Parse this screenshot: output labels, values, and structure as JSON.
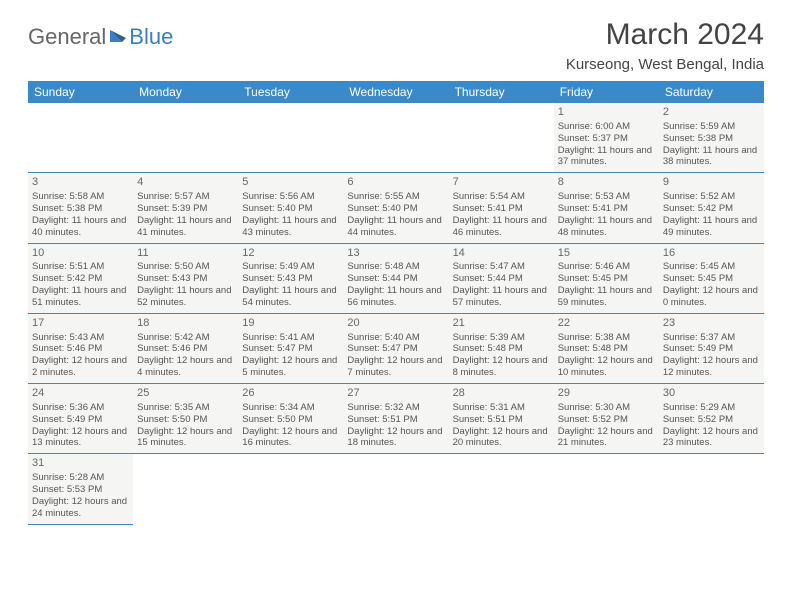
{
  "brand": {
    "part1": "General",
    "part2": "Blue"
  },
  "title": "March 2024",
  "location": "Kurseong, West Bengal, India",
  "colors": {
    "header_bg": "#3a89c9",
    "header_text": "#ffffff",
    "cell_bg": "#f5f5f3",
    "border": "#3a89c9",
    "text": "#555555",
    "brand_gray": "#666666",
    "brand_blue": "#3a7fc4"
  },
  "weekdays": [
    "Sunday",
    "Monday",
    "Tuesday",
    "Wednesday",
    "Thursday",
    "Friday",
    "Saturday"
  ],
  "first_weekday_index": 5,
  "days": [
    {
      "n": 1,
      "sunrise": "6:00 AM",
      "sunset": "5:37 PM",
      "daylight": "11 hours and 37 minutes."
    },
    {
      "n": 2,
      "sunrise": "5:59 AM",
      "sunset": "5:38 PM",
      "daylight": "11 hours and 38 minutes."
    },
    {
      "n": 3,
      "sunrise": "5:58 AM",
      "sunset": "5:38 PM",
      "daylight": "11 hours and 40 minutes."
    },
    {
      "n": 4,
      "sunrise": "5:57 AM",
      "sunset": "5:39 PM",
      "daylight": "11 hours and 41 minutes."
    },
    {
      "n": 5,
      "sunrise": "5:56 AM",
      "sunset": "5:40 PM",
      "daylight": "11 hours and 43 minutes."
    },
    {
      "n": 6,
      "sunrise": "5:55 AM",
      "sunset": "5:40 PM",
      "daylight": "11 hours and 44 minutes."
    },
    {
      "n": 7,
      "sunrise": "5:54 AM",
      "sunset": "5:41 PM",
      "daylight": "11 hours and 46 minutes."
    },
    {
      "n": 8,
      "sunrise": "5:53 AM",
      "sunset": "5:41 PM",
      "daylight": "11 hours and 48 minutes."
    },
    {
      "n": 9,
      "sunrise": "5:52 AM",
      "sunset": "5:42 PM",
      "daylight": "11 hours and 49 minutes."
    },
    {
      "n": 10,
      "sunrise": "5:51 AM",
      "sunset": "5:42 PM",
      "daylight": "11 hours and 51 minutes."
    },
    {
      "n": 11,
      "sunrise": "5:50 AM",
      "sunset": "5:43 PM",
      "daylight": "11 hours and 52 minutes."
    },
    {
      "n": 12,
      "sunrise": "5:49 AM",
      "sunset": "5:43 PM",
      "daylight": "11 hours and 54 minutes."
    },
    {
      "n": 13,
      "sunrise": "5:48 AM",
      "sunset": "5:44 PM",
      "daylight": "11 hours and 56 minutes."
    },
    {
      "n": 14,
      "sunrise": "5:47 AM",
      "sunset": "5:44 PM",
      "daylight": "11 hours and 57 minutes."
    },
    {
      "n": 15,
      "sunrise": "5:46 AM",
      "sunset": "5:45 PM",
      "daylight": "11 hours and 59 minutes."
    },
    {
      "n": 16,
      "sunrise": "5:45 AM",
      "sunset": "5:45 PM",
      "daylight": "12 hours and 0 minutes."
    },
    {
      "n": 17,
      "sunrise": "5:43 AM",
      "sunset": "5:46 PM",
      "daylight": "12 hours and 2 minutes."
    },
    {
      "n": 18,
      "sunrise": "5:42 AM",
      "sunset": "5:46 PM",
      "daylight": "12 hours and 4 minutes."
    },
    {
      "n": 19,
      "sunrise": "5:41 AM",
      "sunset": "5:47 PM",
      "daylight": "12 hours and 5 minutes."
    },
    {
      "n": 20,
      "sunrise": "5:40 AM",
      "sunset": "5:47 PM",
      "daylight": "12 hours and 7 minutes."
    },
    {
      "n": 21,
      "sunrise": "5:39 AM",
      "sunset": "5:48 PM",
      "daylight": "12 hours and 8 minutes."
    },
    {
      "n": 22,
      "sunrise": "5:38 AM",
      "sunset": "5:48 PM",
      "daylight": "12 hours and 10 minutes."
    },
    {
      "n": 23,
      "sunrise": "5:37 AM",
      "sunset": "5:49 PM",
      "daylight": "12 hours and 12 minutes."
    },
    {
      "n": 24,
      "sunrise": "5:36 AM",
      "sunset": "5:49 PM",
      "daylight": "12 hours and 13 minutes."
    },
    {
      "n": 25,
      "sunrise": "5:35 AM",
      "sunset": "5:50 PM",
      "daylight": "12 hours and 15 minutes."
    },
    {
      "n": 26,
      "sunrise": "5:34 AM",
      "sunset": "5:50 PM",
      "daylight": "12 hours and 16 minutes."
    },
    {
      "n": 27,
      "sunrise": "5:32 AM",
      "sunset": "5:51 PM",
      "daylight": "12 hours and 18 minutes."
    },
    {
      "n": 28,
      "sunrise": "5:31 AM",
      "sunset": "5:51 PM",
      "daylight": "12 hours and 20 minutes."
    },
    {
      "n": 29,
      "sunrise": "5:30 AM",
      "sunset": "5:52 PM",
      "daylight": "12 hours and 21 minutes."
    },
    {
      "n": 30,
      "sunrise": "5:29 AM",
      "sunset": "5:52 PM",
      "daylight": "12 hours and 23 minutes."
    },
    {
      "n": 31,
      "sunrise": "5:28 AM",
      "sunset": "5:53 PM",
      "daylight": "12 hours and 24 minutes."
    }
  ],
  "labels": {
    "sunrise": "Sunrise:",
    "sunset": "Sunset:",
    "daylight": "Daylight:"
  }
}
